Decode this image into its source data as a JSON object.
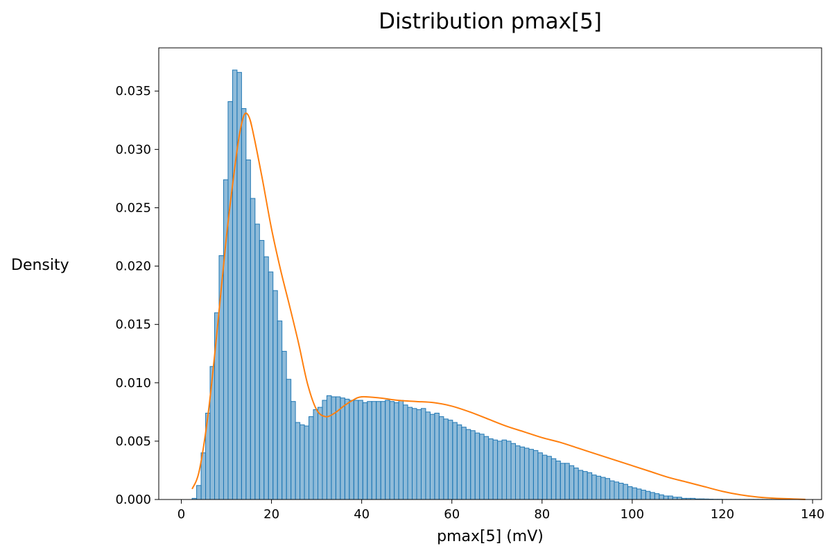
{
  "chart_data": {
    "type": "bar",
    "title": "Distribution pmax[5]",
    "xlabel": "pmax[5] (mV)",
    "ylabel": "Density",
    "xlim": [
      -5,
      142
    ],
    "ylim": [
      0,
      0.0387
    ],
    "xticks": [
      0,
      20,
      40,
      60,
      80,
      100,
      120,
      140
    ],
    "xtick_labels": [
      "0",
      "20",
      "40",
      "60",
      "80",
      "100",
      "120",
      "140"
    ],
    "yticks": [
      0,
      0.005,
      0.01,
      0.015,
      0.02,
      0.025,
      0.03,
      0.035
    ],
    "ytick_labels": [
      "0.000",
      "0.005",
      "0.010",
      "0.015",
      "0.020",
      "0.025",
      "0.030",
      "0.035"
    ],
    "grid": false,
    "legend": "none",
    "series_colors": {
      "bars": "#1f77b4",
      "kde": "#ff7f0e"
    },
    "bin_start": 2.4,
    "bin_width": 0.996,
    "values": [
      0.0001,
      0.0012,
      0.004,
      0.0074,
      0.0114,
      0.016,
      0.0209,
      0.0274,
      0.0341,
      0.0368,
      0.0366,
      0.0335,
      0.0291,
      0.0258,
      0.0236,
      0.0222,
      0.0208,
      0.0195,
      0.0179,
      0.0153,
      0.0127,
      0.0103,
      0.0084,
      0.0066,
      0.0064,
      0.0063,
      0.0071,
      0.0077,
      0.0079,
      0.0085,
      0.0089,
      0.0088,
      0.0088,
      0.0087,
      0.0086,
      0.0085,
      0.0085,
      0.0085,
      0.0083,
      0.0084,
      0.0084,
      0.0084,
      0.0084,
      0.0085,
      0.0084,
      0.0083,
      0.0085,
      0.0081,
      0.0079,
      0.0078,
      0.0077,
      0.0078,
      0.0075,
      0.0073,
      0.0074,
      0.0071,
      0.0069,
      0.0068,
      0.0066,
      0.0064,
      0.0062,
      0.006,
      0.0059,
      0.0057,
      0.0056,
      0.0054,
      0.0052,
      0.0051,
      0.005,
      0.0051,
      0.005,
      0.0048,
      0.0046,
      0.0045,
      0.0044,
      0.0043,
      0.0042,
      0.004,
      0.0038,
      0.0037,
      0.0035,
      0.0033,
      0.0031,
      0.0031,
      0.0029,
      0.0027,
      0.0025,
      0.0024,
      0.0023,
      0.0021,
      0.002,
      0.0019,
      0.0018,
      0.0016,
      0.0015,
      0.0014,
      0.0013,
      0.0011,
      0.001,
      0.0009,
      0.0008,
      0.0007,
      0.0006,
      0.0005,
      0.0004,
      0.0003,
      0.0003,
      0.0002,
      0.0002,
      0.0001,
      0.0001,
      0.0001,
      5e-05,
      5e-05,
      4e-05,
      3e-05,
      2e-05,
      2e-05,
      1e-05,
      1e-05,
      1e-05,
      1e-05,
      1e-05,
      1e-05,
      1e-05,
      1e-05,
      1e-05,
      1e-05,
      1e-05,
      1e-05,
      1e-05,
      1e-05,
      1e-05,
      1e-05,
      1e-05
    ],
    "kde": {
      "x": [
        2.4,
        4,
        6,
        8,
        10,
        12,
        13,
        14,
        15,
        16,
        18,
        20,
        22,
        24,
        26,
        28,
        30,
        32,
        34,
        36,
        38,
        40,
        44,
        48,
        52,
        56,
        60,
        64,
        68,
        72,
        76,
        80,
        84,
        88,
        92,
        96,
        100,
        104,
        108,
        112,
        116,
        120,
        124,
        128,
        132,
        138.4
      ],
      "y": [
        0.0009,
        0.0025,
        0.0075,
        0.0147,
        0.0225,
        0.0289,
        0.0315,
        0.033,
        0.0328,
        0.0313,
        0.0274,
        0.0232,
        0.0197,
        0.0166,
        0.0134,
        0.0099,
        0.0077,
        0.0071,
        0.0074,
        0.008,
        0.0085,
        0.0088,
        0.0087,
        0.0085,
        0.0084,
        0.0083,
        0.008,
        0.0075,
        0.0069,
        0.0063,
        0.0058,
        0.0053,
        0.0049,
        0.0044,
        0.0039,
        0.0034,
        0.0029,
        0.0024,
        0.0019,
        0.0015,
        0.0011,
        0.0007,
        0.0004,
        0.0002,
        0.0001,
        1e-05
      ]
    }
  }
}
